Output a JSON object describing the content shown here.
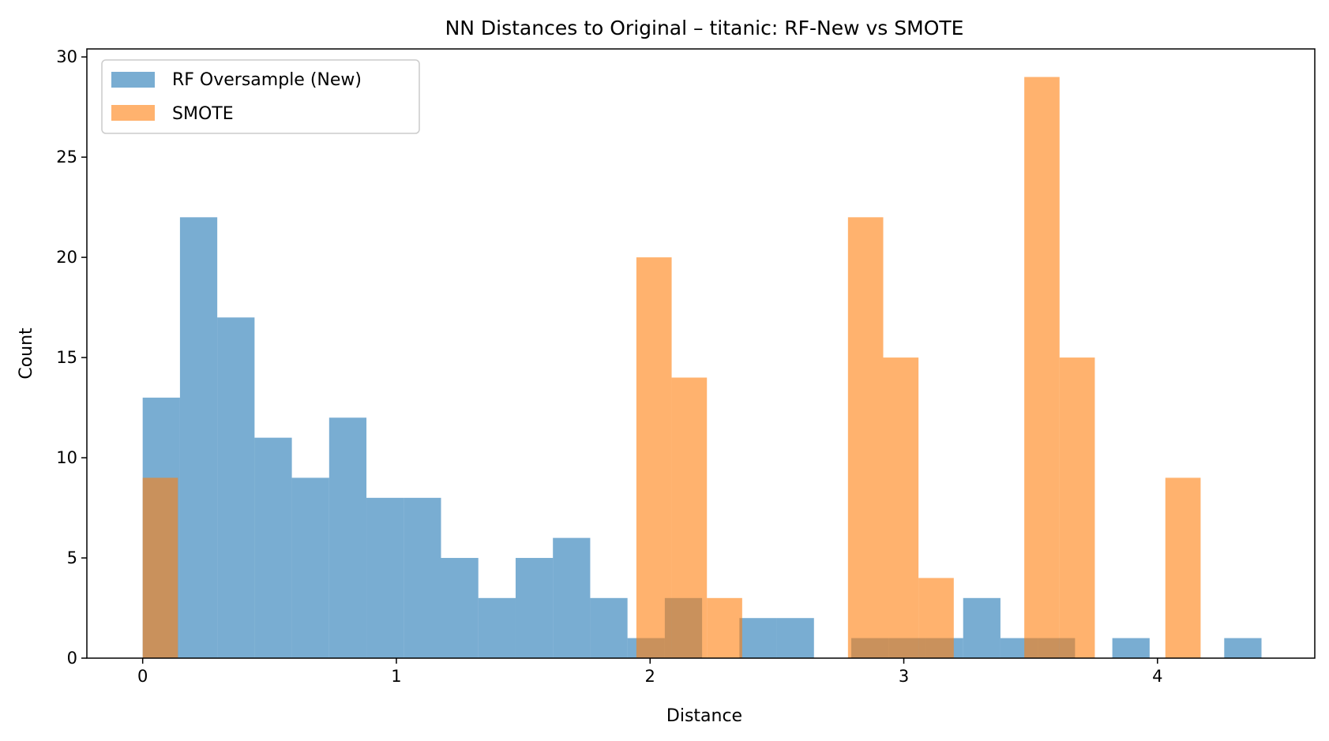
{
  "chart_data": {
    "type": "bar",
    "title": "NN Distances to Original – titanic: RF-New vs SMOTE",
    "xlabel": "Distance",
    "ylabel": "Count",
    "xlim": [
      -0.22,
      4.62
    ],
    "ylim": [
      0,
      30.4
    ],
    "xticks": [
      0,
      1,
      2,
      3,
      4
    ],
    "yticks": [
      0,
      5,
      10,
      15,
      20,
      25,
      30
    ],
    "grid": false,
    "legend": {
      "placement": "top-left",
      "entries": [
        "RF Oversample (New)",
        "SMOTE"
      ]
    },
    "series": [
      {
        "name": "RF Oversample (New)",
        "color": "#1f77b4",
        "alpha": 0.6,
        "bins": [
          {
            "x0": 0.0,
            "x1": 0.147,
            "count": 13
          },
          {
            "x0": 0.147,
            "x1": 0.294,
            "count": 22
          },
          {
            "x0": 0.294,
            "x1": 0.441,
            "count": 17
          },
          {
            "x0": 0.441,
            "x1": 0.588,
            "count": 11
          },
          {
            "x0": 0.588,
            "x1": 0.735,
            "count": 9
          },
          {
            "x0": 0.735,
            "x1": 0.882,
            "count": 12
          },
          {
            "x0": 0.882,
            "x1": 1.029,
            "count": 8
          },
          {
            "x0": 1.029,
            "x1": 1.176,
            "count": 8
          },
          {
            "x0": 1.176,
            "x1": 1.323,
            "count": 5
          },
          {
            "x0": 1.323,
            "x1": 1.47,
            "count": 3
          },
          {
            "x0": 1.47,
            "x1": 1.617,
            "count": 5
          },
          {
            "x0": 1.617,
            "x1": 1.764,
            "count": 6
          },
          {
            "x0": 1.764,
            "x1": 1.911,
            "count": 3
          },
          {
            "x0": 1.911,
            "x1": 2.058,
            "count": 1
          },
          {
            "x0": 2.058,
            "x1": 2.205,
            "count": 3
          },
          {
            "x0": 2.205,
            "x1": 2.352,
            "count": 0
          },
          {
            "x0": 2.352,
            "x1": 2.499,
            "count": 2
          },
          {
            "x0": 2.499,
            "x1": 2.646,
            "count": 2
          },
          {
            "x0": 2.646,
            "x1": 2.793,
            "count": 0
          },
          {
            "x0": 2.793,
            "x1": 2.94,
            "count": 1
          },
          {
            "x0": 2.94,
            "x1": 3.087,
            "count": 1
          },
          {
            "x0": 3.087,
            "x1": 3.234,
            "count": 1
          },
          {
            "x0": 3.234,
            "x1": 3.381,
            "count": 3
          },
          {
            "x0": 3.381,
            "x1": 3.528,
            "count": 1
          },
          {
            "x0": 3.528,
            "x1": 3.675,
            "count": 1
          },
          {
            "x0": 3.675,
            "x1": 3.822,
            "count": 0
          },
          {
            "x0": 3.822,
            "x1": 3.969,
            "count": 1
          },
          {
            "x0": 3.969,
            "x1": 4.116,
            "count": 0
          },
          {
            "x0": 4.116,
            "x1": 4.263,
            "count": 0
          },
          {
            "x0": 4.263,
            "x1": 4.41,
            "count": 1
          }
        ]
      },
      {
        "name": "SMOTE",
        "color": "#ff7f0e",
        "alpha": 0.6,
        "bins": [
          {
            "x0": 0.0,
            "x1": 0.139,
            "count": 9
          },
          {
            "x0": 0.139,
            "x1": 0.278,
            "count": 0
          },
          {
            "x0": 0.278,
            "x1": 0.417,
            "count": 0
          },
          {
            "x0": 0.417,
            "x1": 0.556,
            "count": 0
          },
          {
            "x0": 0.556,
            "x1": 0.695,
            "count": 0
          },
          {
            "x0": 0.695,
            "x1": 0.834,
            "count": 0
          },
          {
            "x0": 0.834,
            "x1": 0.973,
            "count": 0
          },
          {
            "x0": 0.973,
            "x1": 1.112,
            "count": 0
          },
          {
            "x0": 1.112,
            "x1": 1.251,
            "count": 0
          },
          {
            "x0": 1.251,
            "x1": 1.39,
            "count": 0
          },
          {
            "x0": 1.39,
            "x1": 1.529,
            "count": 0
          },
          {
            "x0": 1.529,
            "x1": 1.668,
            "count": 0
          },
          {
            "x0": 1.668,
            "x1": 1.807,
            "count": 0
          },
          {
            "x0": 1.807,
            "x1": 1.946,
            "count": 0
          },
          {
            "x0": 1.946,
            "x1": 2.085,
            "count": 20
          },
          {
            "x0": 2.085,
            "x1": 2.224,
            "count": 14
          },
          {
            "x0": 2.224,
            "x1": 2.363,
            "count": 3
          },
          {
            "x0": 2.363,
            "x1": 2.502,
            "count": 0
          },
          {
            "x0": 2.502,
            "x1": 2.641,
            "count": 0
          },
          {
            "x0": 2.641,
            "x1": 2.78,
            "count": 0
          },
          {
            "x0": 2.78,
            "x1": 2.919,
            "count": 22
          },
          {
            "x0": 2.919,
            "x1": 3.058,
            "count": 15
          },
          {
            "x0": 3.058,
            "x1": 3.197,
            "count": 4
          },
          {
            "x0": 3.197,
            "x1": 3.336,
            "count": 0
          },
          {
            "x0": 3.336,
            "x1": 3.475,
            "count": 0
          },
          {
            "x0": 3.475,
            "x1": 3.614,
            "count": 29
          },
          {
            "x0": 3.614,
            "x1": 3.753,
            "count": 15
          },
          {
            "x0": 3.753,
            "x1": 3.892,
            "count": 0
          },
          {
            "x0": 3.892,
            "x1": 4.031,
            "count": 0
          },
          {
            "x0": 4.031,
            "x1": 4.17,
            "count": 9
          }
        ]
      }
    ]
  }
}
